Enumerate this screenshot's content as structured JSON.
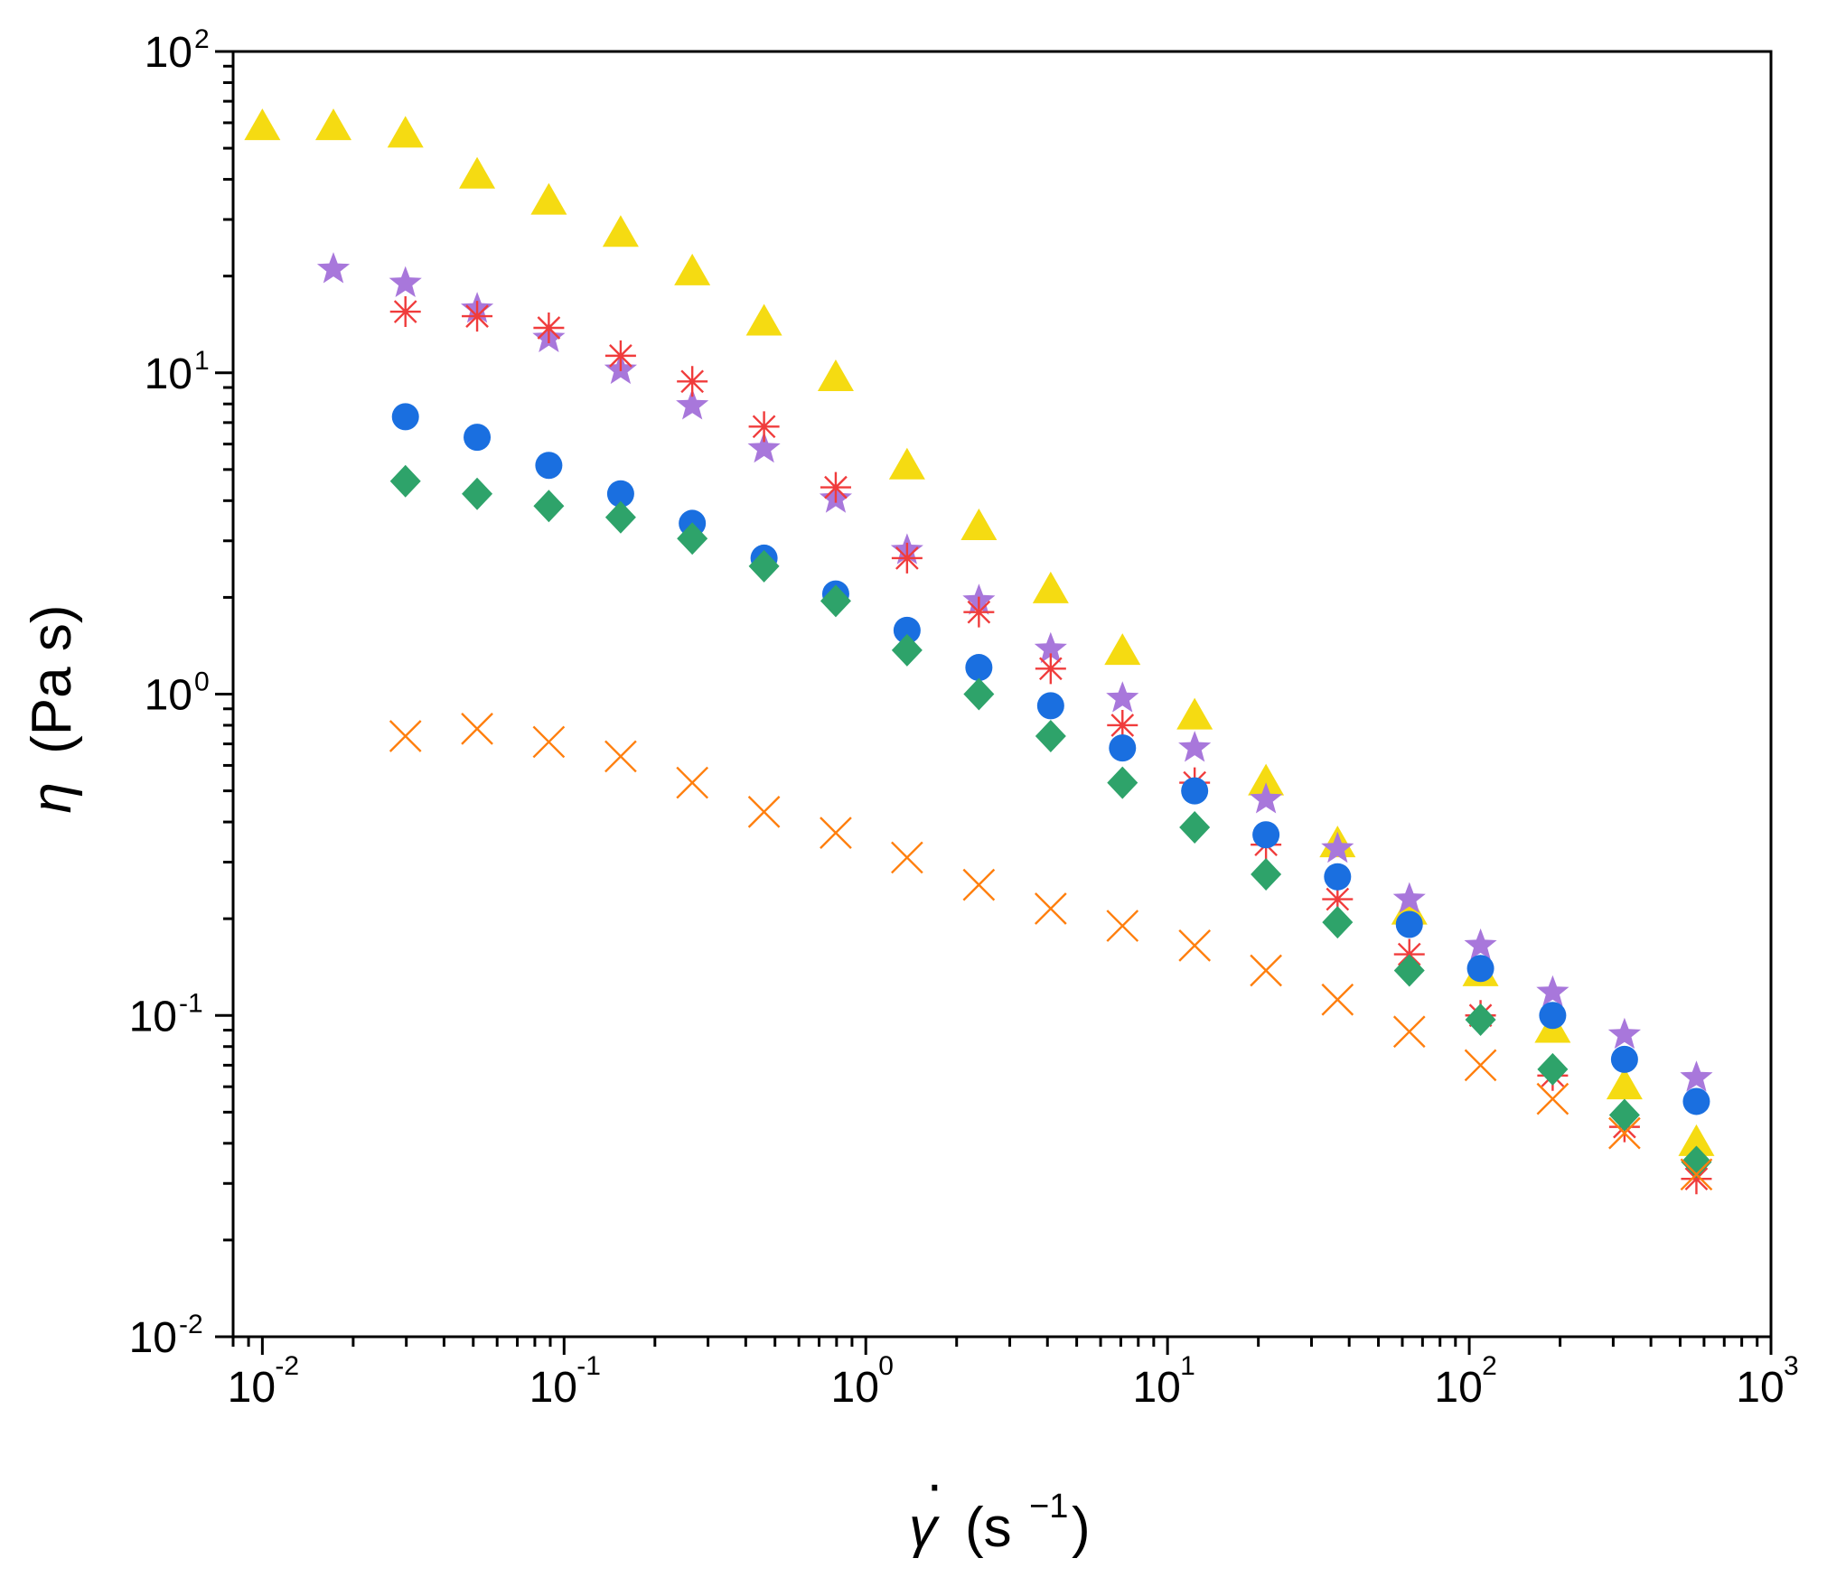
{
  "chart_data": {
    "type": "scatter",
    "title": "",
    "xscale": "log",
    "yscale": "log",
    "xlim": [
      0.008,
      1000
    ],
    "ylim": [
      0.01,
      100
    ],
    "grid": false,
    "xlabel": {
      "symbol": "γ",
      "dot": "·",
      "unit_open": "(s",
      "unit_exp": "−1",
      "unit_close": ")"
    },
    "ylabel": {
      "symbol": "η",
      "unit": "(Pa s)"
    },
    "x_ticks": [
      {
        "base": "10",
        "exp": "-2",
        "value": 0.01
      },
      {
        "base": "10",
        "exp": "-1",
        "value": 0.1
      },
      {
        "base": "10",
        "exp": "0",
        "value": 1
      },
      {
        "base": "10",
        "exp": "1",
        "value": 10
      },
      {
        "base": "10",
        "exp": "2",
        "value": 100
      },
      {
        "base": "10",
        "exp": "3",
        "value": 1000
      }
    ],
    "y_ticks": [
      {
        "base": "10",
        "exp": "-2",
        "value": 0.01
      },
      {
        "base": "10",
        "exp": "-1",
        "value": 0.1
      },
      {
        "base": "10",
        "exp": "0",
        "value": 1
      },
      {
        "base": "10",
        "exp": "1",
        "value": 10
      },
      {
        "base": "10",
        "exp": "2",
        "value": 100
      }
    ],
    "series": [
      {
        "name": "triangle-series",
        "marker": "triangle",
        "color": "#F5DB12",
        "x": [
          0.01,
          0.0172,
          0.0298,
          0.0515,
          0.089,
          0.154,
          0.266,
          0.46,
          0.795,
          1.37,
          2.37,
          4.1,
          7.09,
          12.3,
          21.2,
          36.6,
          63.3,
          109,
          189,
          327,
          566
        ],
        "y": [
          58,
          58,
          55,
          41,
          34,
          27,
          20.5,
          14.3,
          9.6,
          5.1,
          3.3,
          2.1,
          1.35,
          0.85,
          0.53,
          0.34,
          0.21,
          0.135,
          0.09,
          0.06,
          0.04
        ]
      },
      {
        "name": "star-series",
        "marker": "star",
        "color": "#A877DB",
        "x": [
          0.0172,
          0.0298,
          0.0515,
          0.089,
          0.154,
          0.266,
          0.46,
          0.795,
          1.37,
          2.37,
          4.1,
          7.09,
          12.3,
          21.2,
          36.6,
          63.3,
          109,
          189,
          327,
          566
        ],
        "y": [
          21,
          19,
          15.8,
          12.8,
          10.2,
          7.9,
          5.8,
          4.05,
          2.8,
          1.95,
          1.38,
          0.97,
          0.68,
          0.47,
          0.33,
          0.23,
          0.165,
          0.118,
          0.087,
          0.064
        ]
      },
      {
        "name": "asterisk-series",
        "marker": "asterisk",
        "color": "#F03C3C",
        "x": [
          0.0298,
          0.0515,
          0.089,
          0.154,
          0.266,
          0.46,
          0.795,
          1.37,
          2.37,
          4.1,
          7.09,
          12.3,
          21.2,
          36.6,
          63.3,
          109,
          189,
          327,
          566
        ],
        "y": [
          15.5,
          15,
          13.8,
          11.3,
          9.4,
          6.8,
          4.4,
          2.65,
          1.8,
          1.2,
          0.8,
          0.53,
          0.34,
          0.23,
          0.155,
          0.1,
          0.065,
          0.045,
          0.031
        ]
      },
      {
        "name": "circle-series",
        "marker": "circle",
        "color": "#1A6FE0",
        "x": [
          0.0298,
          0.0515,
          0.089,
          0.154,
          0.266,
          0.46,
          0.795,
          1.37,
          2.37,
          4.1,
          7.09,
          12.3,
          21.2,
          36.6,
          63.3,
          109,
          189,
          327,
          566
        ],
        "y": [
          7.3,
          6.3,
          5.15,
          4.2,
          3.4,
          2.65,
          2.05,
          1.58,
          1.21,
          0.92,
          0.68,
          0.5,
          0.365,
          0.27,
          0.192,
          0.14,
          0.1,
          0.073,
          0.054
        ]
      },
      {
        "name": "diamond-series",
        "marker": "diamond",
        "color": "#2EA36A",
        "x": [
          0.0298,
          0.0515,
          0.089,
          0.154,
          0.266,
          0.46,
          0.795,
          1.37,
          2.37,
          4.1,
          7.09,
          12.3,
          21.2,
          36.6,
          63.3,
          109,
          189,
          327,
          566
        ],
        "y": [
          4.6,
          4.2,
          3.85,
          3.55,
          3.05,
          2.5,
          1.95,
          1.37,
          1.0,
          0.74,
          0.53,
          0.385,
          0.275,
          0.195,
          0.138,
          0.097,
          0.068,
          0.049,
          0.035
        ]
      },
      {
        "name": "cross-series",
        "marker": "cross",
        "color": "#FF7F0E",
        "x": [
          0.0298,
          0.0515,
          0.089,
          0.154,
          0.266,
          0.46,
          0.795,
          1.37,
          2.37,
          4.1,
          7.09,
          12.3,
          21.2,
          36.6,
          63.3,
          109,
          189,
          327,
          566
        ],
        "y": [
          0.74,
          0.78,
          0.71,
          0.64,
          0.53,
          0.43,
          0.37,
          0.31,
          0.255,
          0.215,
          0.19,
          0.165,
          0.138,
          0.112,
          0.089,
          0.07,
          0.055,
          0.043,
          0.032
        ]
      }
    ]
  }
}
